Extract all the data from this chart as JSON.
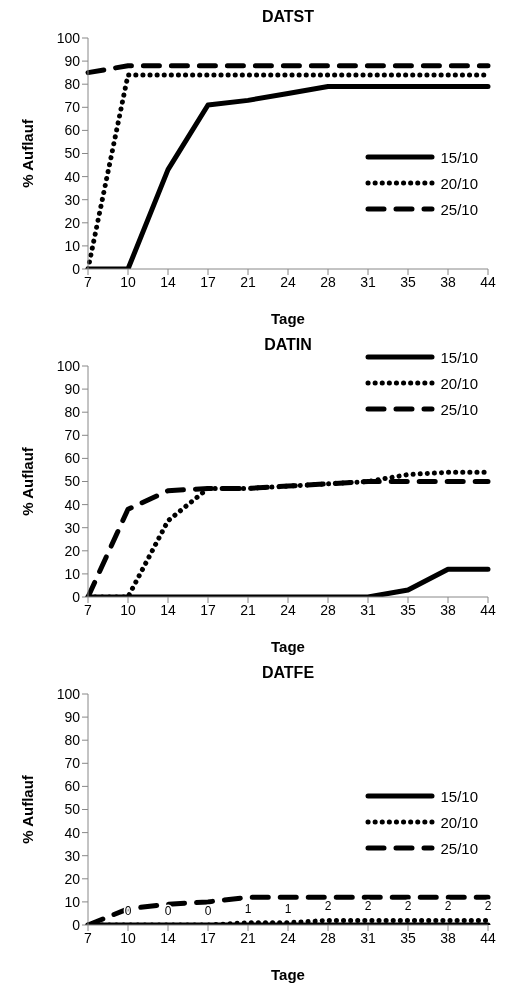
{
  "chart_data": [
    {
      "type": "line",
      "title": "DATST",
      "xlabel": "Tage",
      "ylabel": "% Auflauf",
      "categories": [
        "7",
        "10",
        "14",
        "17",
        "21",
        "24",
        "28",
        "31",
        "35",
        "38",
        "44"
      ],
      "ylim": [
        0,
        100
      ],
      "yticks": [
        0,
        10,
        20,
        30,
        40,
        50,
        60,
        70,
        80,
        90,
        100
      ],
      "legend": "bottom right",
      "series": [
        {
          "name": "15/10",
          "color": "#000000",
          "line_style": "solid",
          "values": [
            0,
            0,
            43,
            71,
            73,
            76,
            79,
            79,
            79,
            79,
            79
          ]
        },
        {
          "name": "20/10",
          "color": "#000000",
          "line_style": "dotted",
          "values": [
            0,
            84,
            84,
            84,
            84,
            84,
            84,
            84,
            84,
            84,
            84
          ]
        },
        {
          "name": "25/10",
          "color": "#000000",
          "line_style": "dashed",
          "values": [
            85,
            88,
            88,
            88,
            88,
            88,
            88,
            88,
            88,
            88,
            88
          ]
        }
      ]
    },
    {
      "type": "line",
      "title": "DATIN",
      "xlabel": "Tage",
      "ylabel": "% Auflauf",
      "categories": [
        "7",
        "10",
        "14",
        "17",
        "21",
        "24",
        "28",
        "31",
        "35",
        "38",
        "44"
      ],
      "ylim": [
        0,
        100
      ],
      "yticks": [
        0,
        10,
        20,
        30,
        40,
        50,
        60,
        70,
        80,
        90,
        100
      ],
      "legend": "top right",
      "series": [
        {
          "name": "15/10",
          "color": "#000000",
          "line_style": "solid",
          "values": [
            0,
            0,
            0,
            0,
            0,
            0,
            0,
            0,
            3,
            12,
            12
          ]
        },
        {
          "name": "20/10",
          "color": "#000000",
          "line_style": "dotted",
          "values": [
            0,
            0,
            33,
            47,
            47,
            48,
            49,
            50,
            53,
            54,
            54
          ]
        },
        {
          "name": "25/10",
          "color": "#000000",
          "line_style": "dashed",
          "values": [
            0,
            38,
            46,
            47,
            47,
            48,
            49,
            50,
            50,
            50,
            50
          ]
        }
      ]
    },
    {
      "type": "line",
      "title": "DATFE",
      "xlabel": "Tage",
      "ylabel": "% Auflauf",
      "categories": [
        "7",
        "10",
        "14",
        "17",
        "21",
        "24",
        "28",
        "31",
        "35",
        "38",
        "44"
      ],
      "ylim": [
        0,
        100
      ],
      "yticks": [
        0,
        10,
        20,
        30,
        40,
        50,
        60,
        70,
        80,
        90,
        100
      ],
      "legend": "right",
      "series": [
        {
          "name": "15/10",
          "color": "#000000",
          "line_style": "solid",
          "values": [
            0,
            0,
            0,
            0,
            0,
            0,
            0,
            0,
            0,
            0,
            0
          ]
        },
        {
          "name": "20/10",
          "color": "#000000",
          "line_style": "dotted",
          "values": [
            0,
            0,
            0,
            0,
            1,
            1,
            2,
            2,
            2,
            2,
            2
          ],
          "value_labels": [
            null,
            "0",
            "0",
            "0",
            "1",
            "1",
            "2",
            "2",
            "2",
            "2",
            "2"
          ]
        },
        {
          "name": "25/10",
          "color": "#000000",
          "line_style": "dashed",
          "values": [
            0,
            7,
            9,
            10,
            12,
            12,
            12,
            12,
            12,
            12,
            12
          ]
        }
      ]
    }
  ]
}
